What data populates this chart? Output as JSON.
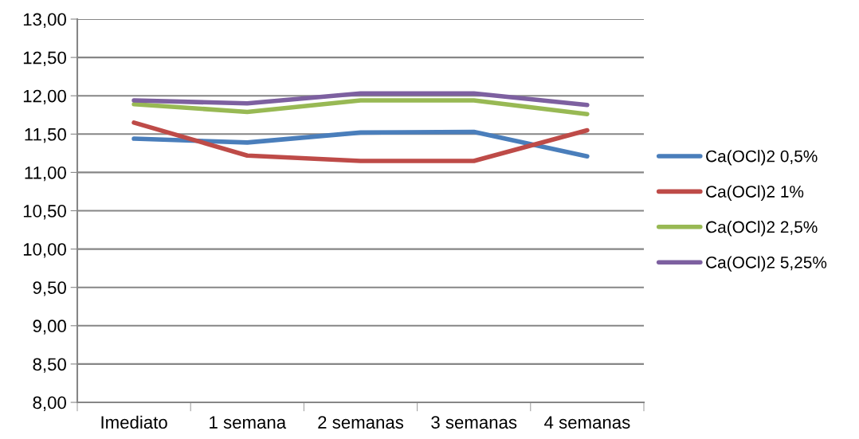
{
  "chart_data": {
    "type": "line",
    "categories": [
      "Imediato",
      "1 semana",
      "2 semanas",
      "3 semanas",
      "4 semanas"
    ],
    "series": [
      {
        "name": "Ca(OCl)2 0,5%",
        "color": "#4a7ebb",
        "values": [
          11.44,
          11.39,
          11.52,
          11.53,
          11.21
        ]
      },
      {
        "name": "Ca(OCl)2 1%",
        "color": "#be4b48",
        "values": [
          11.65,
          11.22,
          11.15,
          11.15,
          11.55
        ]
      },
      {
        "name": "Ca(OCl)2 2,5%",
        "color": "#98b954",
        "values": [
          11.89,
          11.79,
          11.94,
          11.94,
          11.76
        ]
      },
      {
        "name": "Ca(OCl)2 5,25%",
        "color": "#7d60a0",
        "values": [
          11.94,
          11.9,
          12.03,
          12.03,
          11.88
        ]
      }
    ],
    "ylim": [
      8,
      13
    ],
    "yticks": [
      {
        "value": 8,
        "label": "8,00"
      },
      {
        "value": 8.5,
        "label": "8,50"
      },
      {
        "value": 9,
        "label": "9,00"
      },
      {
        "value": 9.5,
        "label": "9,50"
      },
      {
        "value": 10,
        "label": "10,00"
      },
      {
        "value": 10.5,
        "label": "10,50"
      },
      {
        "value": 11,
        "label": "11,00"
      },
      {
        "value": 11.5,
        "label": "11,50"
      },
      {
        "value": 12,
        "label": "12,00"
      },
      {
        "value": 12.5,
        "label": "12,50"
      },
      {
        "value": 13,
        "label": "13,00"
      }
    ],
    "grid": "y",
    "legend": "right",
    "marker": "none",
    "line_style": "solid"
  }
}
